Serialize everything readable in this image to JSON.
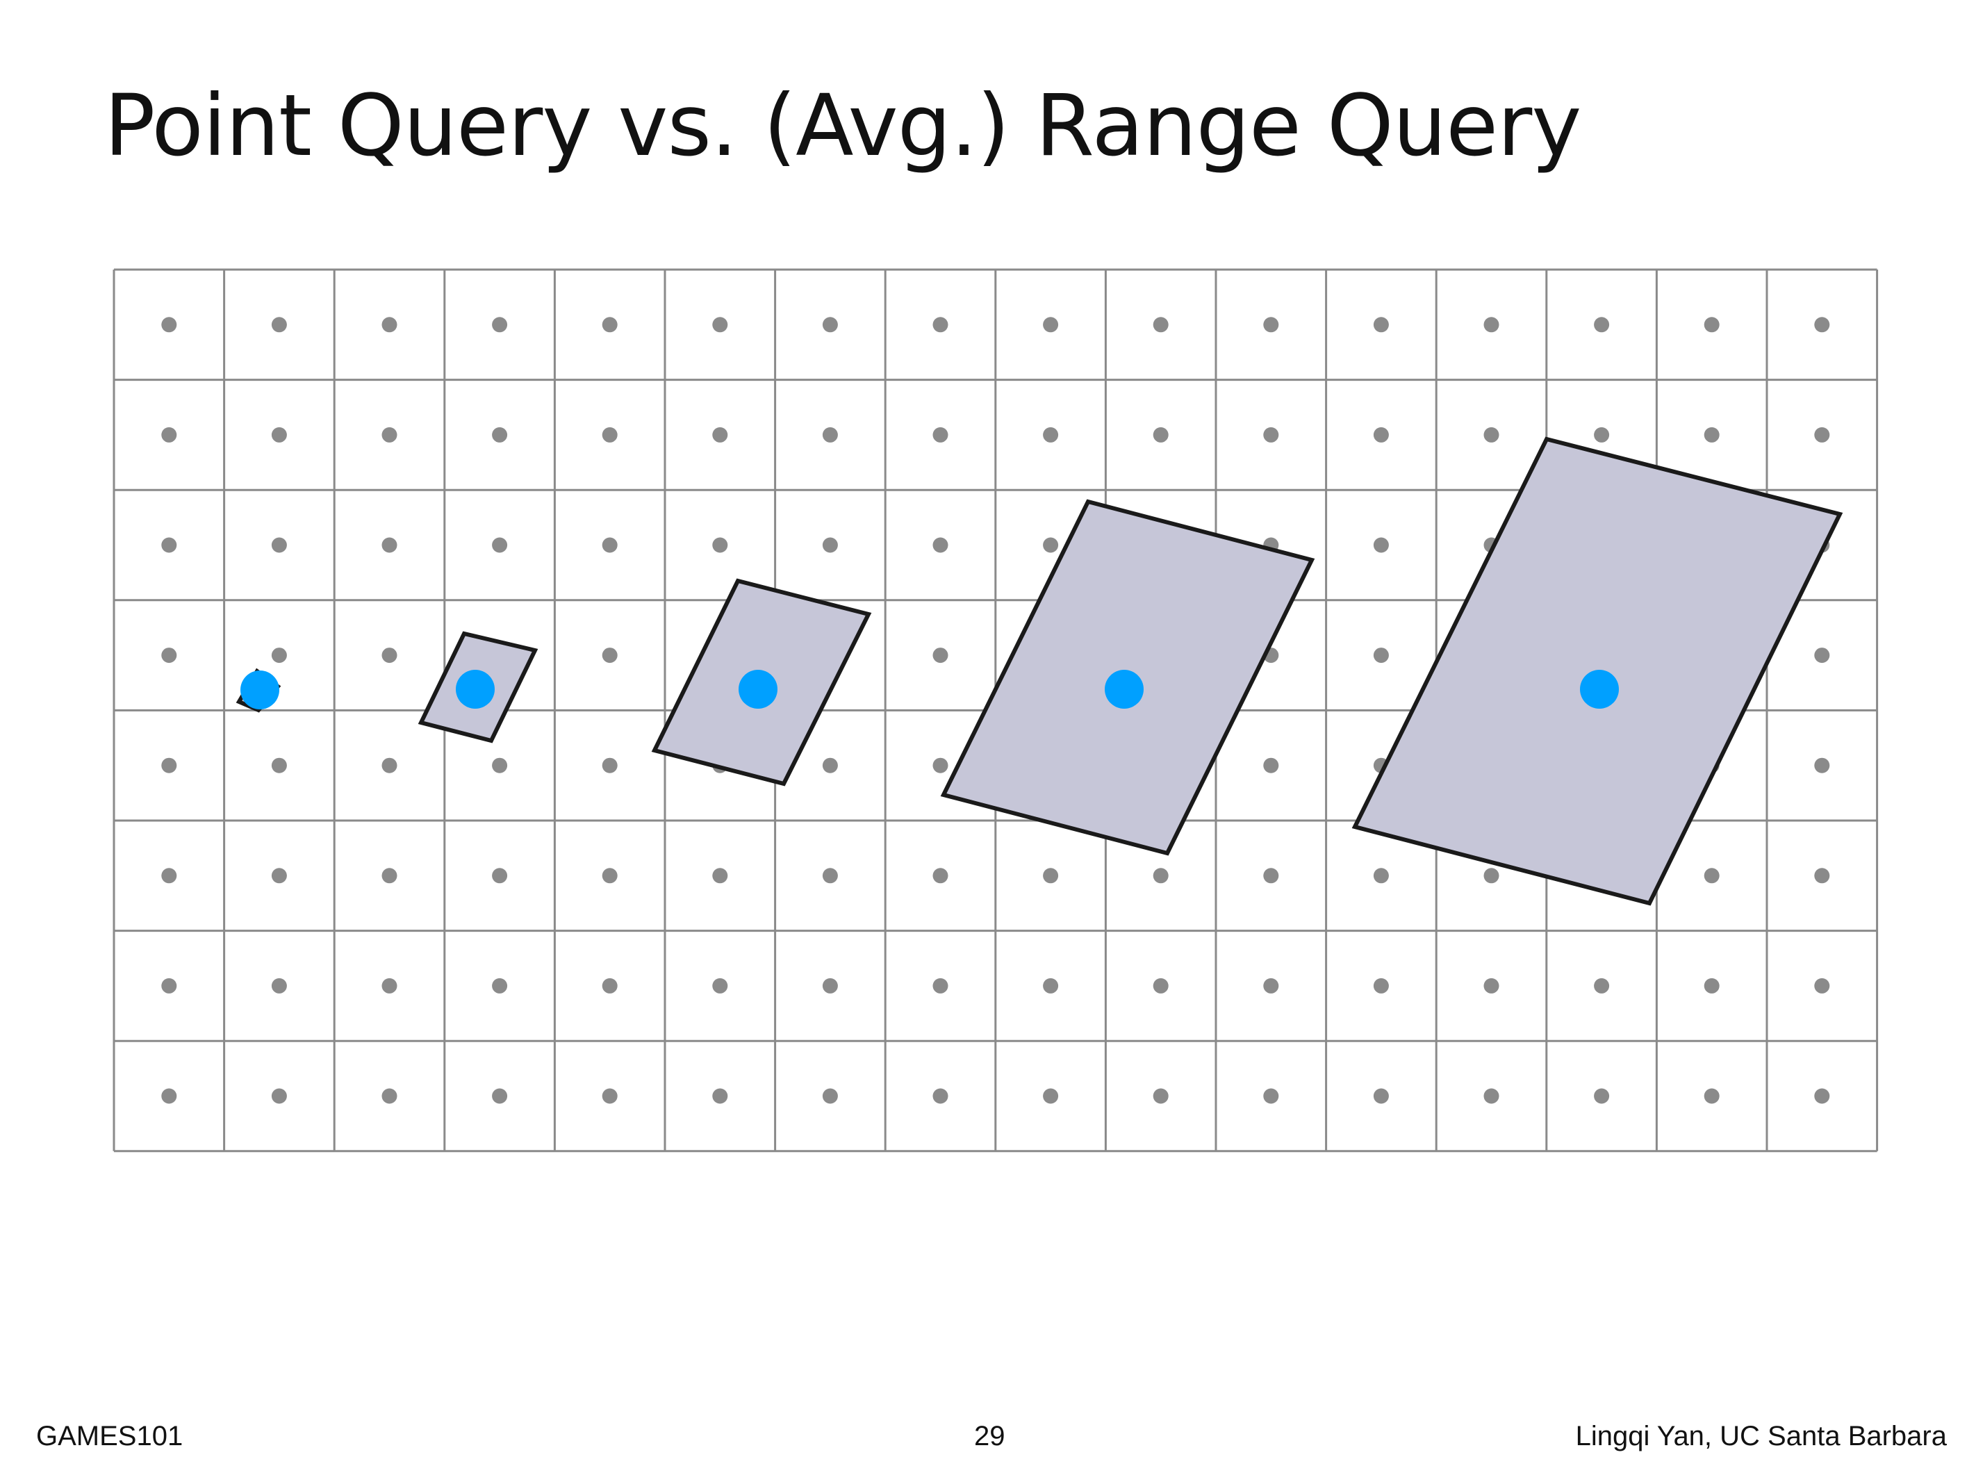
{
  "slide": {
    "title": "Point Query vs. (Avg.) Range Query",
    "course": "GAMES101",
    "page_number": "29",
    "author": "Lingqi Yan, UC Santa Barbara"
  },
  "grid": {
    "columns": 16,
    "rows": 8,
    "line_color": "#8a8a8a",
    "sample_dot_color": "#8a8a8a"
  },
  "queries": {
    "point_color": "#00a0ff",
    "footprint_fill": "#c6c6d8",
    "footprint_stroke": "#1a1a1a",
    "footprints": [
      {
        "name": "footprint-1"
      },
      {
        "name": "footprint-2"
      },
      {
        "name": "footprint-3"
      },
      {
        "name": "footprint-4"
      },
      {
        "name": "footprint-5"
      }
    ]
  }
}
